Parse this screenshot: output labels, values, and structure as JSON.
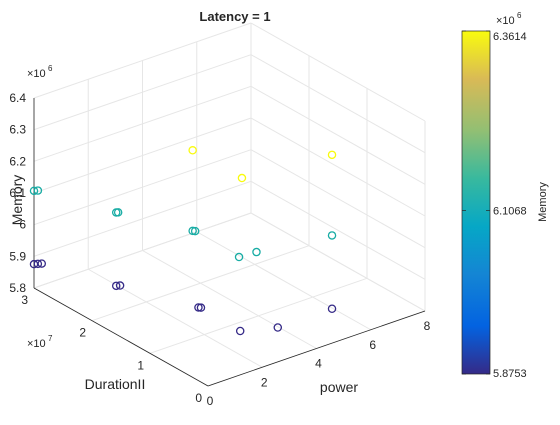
{
  "chart_data": {
    "type": "scatter3d",
    "title": "Latency = 1",
    "xlabel": "power",
    "ylabel": "DurationII",
    "zlabel": "Memory",
    "xlim": [
      0,
      8
    ],
    "ylim": [
      0,
      30000000
    ],
    "zlim": [
      5800000,
      6400000
    ],
    "x_ticks": [
      "0",
      "2",
      "4",
      "6",
      "8"
    ],
    "y_ticks": [
      "0",
      "1",
      "2",
      "3"
    ],
    "y_exponent": "×10^7",
    "z_ticks": [
      "5.8",
      "5.9",
      "6",
      "6.1",
      "6.2",
      "6.3",
      "6.4"
    ],
    "z_exponent": "×10^6",
    "grid": true,
    "marker": "open-circle",
    "colormap": "parula",
    "points": [
      {
        "x": 0.0,
        "y": 30000000,
        "z": 5875300
      },
      {
        "x": 0.1,
        "y": 29800000,
        "z": 5875300
      },
      {
        "x": 0.2,
        "y": 29600000,
        "z": 5875300
      },
      {
        "x": 1.0,
        "y": 20500000,
        "z": 5875300
      },
      {
        "x": 1.1,
        "y": 20300000,
        "z": 5875300
      },
      {
        "x": 2.0,
        "y": 11000000,
        "z": 5875300
      },
      {
        "x": 2.05,
        "y": 10800000,
        "z": 5875300
      },
      {
        "x": 2.0,
        "y": 3800000,
        "z": 5875300
      },
      {
        "x": 3.0,
        "y": 2000000,
        "z": 5875300
      },
      {
        "x": 5.0,
        "y": 2000000,
        "z": 5875300
      },
      {
        "x": 0.0,
        "y": 30000000,
        "z": 6106800
      },
      {
        "x": 0.1,
        "y": 29800000,
        "z": 6106800
      },
      {
        "x": 1.0,
        "y": 20500000,
        "z": 6106800
      },
      {
        "x": 1.05,
        "y": 20400000,
        "z": 6106800
      },
      {
        "x": 2.0,
        "y": 12000000,
        "z": 6106800
      },
      {
        "x": 2.05,
        "y": 11800000,
        "z": 6106800
      },
      {
        "x": 2.0,
        "y": 4000000,
        "z": 6106800
      },
      {
        "x": 2.6,
        "y": 3800000,
        "z": 6106800
      },
      {
        "x": 5.0,
        "y": 2000000,
        "z": 6106800
      },
      {
        "x": 2.0,
        "y": 12000000,
        "z": 6361400
      },
      {
        "x": 2.0,
        "y": 3500000,
        "z": 6361400
      },
      {
        "x": 5.0,
        "y": 2000000,
        "z": 6361400
      }
    ],
    "colorbar": {
      "label": "Memory",
      "exponent": "×10^6",
      "min": 5.8753,
      "max": 6.3614,
      "ticks": [
        "6.3614",
        "6.1068",
        "5.8753"
      ],
      "tick_values": [
        6.3614,
        6.1068,
        5.8753
      ]
    }
  }
}
